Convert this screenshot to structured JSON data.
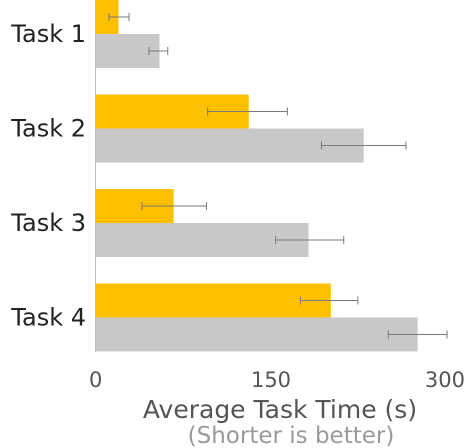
{
  "chart_data": {
    "type": "bar",
    "orientation": "horizontal",
    "categories": [
      "Task 1",
      "Task 2",
      "Task 3",
      "Task 4"
    ],
    "series": [
      {
        "color": "#FFC000",
        "values": [
          20,
          131,
          67,
          201
        ],
        "error_low": [
          12,
          96,
          40,
          175
        ],
        "error_high": [
          29,
          164,
          95,
          224
        ]
      },
      {
        "color": "#C8C8C8",
        "values": [
          55,
          229,
          182,
          275
        ],
        "error_low": [
          46,
          193,
          154,
          250
        ],
        "error_high": [
          62,
          265,
          212,
          300
        ]
      }
    ],
    "xlim": [
      0,
      300
    ],
    "xticks": [
      "0",
      "150",
      "300"
    ],
    "xlabel": "Average Task Time (s)",
    "xlabel_note": "(Shorter is better)",
    "grid": false
  }
}
